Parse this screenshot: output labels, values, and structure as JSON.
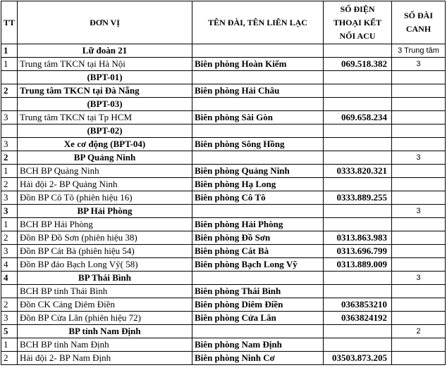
{
  "table": {
    "header": [
      "TT",
      "ĐƠN VỊ",
      "TÊN ĐÀI, TÊN LIÊN LẠC",
      "SỐ ĐIỆN THOẠI KẾT NỐI ACU",
      "SỐ ĐÀI CANH"
    ],
    "rows": [
      [
        "1",
        "Lữ đoàn 21",
        null,
        null,
        "3 Trung tâm"
      ],
      [
        "1",
        "Trung tâm TKCN tại Hà Nội",
        "Biên phòng Hoàn Kiếm",
        "069.518.382",
        "3"
      ],
      [
        null,
        "(BPT-01)",
        null,
        null,
        null
      ],
      [
        "2",
        "Trung tâm TKCN tại Đà Nẵng",
        "Biên phòng Hải Châu",
        null,
        null
      ],
      [
        null,
        "(BPT-03)",
        null,
        null,
        null
      ],
      [
        "3",
        "Trung tâm TKCN tại Tp HCM",
        "Biên phòng Sài Gòn",
        "069.658.234",
        null
      ],
      [
        null,
        "(BPT-02)",
        null,
        null,
        null
      ],
      [
        "3",
        "Xe cơ động (BPT-04)",
        "Biên phòng Sông Hồng",
        null,
        null
      ],
      [
        "2",
        "BP Quảng Ninh",
        null,
        null,
        "3"
      ],
      [
        "1",
        "BCH BP Quảng Ninh",
        "Biên phòng Quảng Ninh",
        "0333.820.321",
        null
      ],
      [
        "2",
        "Hải đội 2- BP Quảng Ninh",
        "Biên phòng Hạ Long",
        null,
        null
      ],
      [
        "3",
        "Đồn BP Cô Tô (phiên hiệu 16)",
        "Biên phòng Cô Tô",
        "0333.889.255",
        null
      ],
      [
        "3",
        "BP Hải Phòng",
        null,
        null,
        "3"
      ],
      [
        "1",
        "BCH BP Hải Phòng",
        "Biên phòng Hải Phòng",
        null,
        null
      ],
      [
        "2",
        "Đồn BP Đồ Sơn (phiên hiệu 38)",
        "Biên phòng Đồ Sơn",
        "0313.863.983",
        null
      ],
      [
        "3",
        "Đồn BP Cát Bà (phiên hiệu 54)",
        "Biên phòng Cát Bà",
        "0313.696.799",
        null
      ],
      [
        "4",
        "Đồn BP đảo Bạch Long Vỹ( 58)",
        "Biên phòng Bạch Long Vỹ",
        "0313.889.009",
        null
      ],
      [
        "4",
        "BP Thái Bình",
        null,
        null,
        "3"
      ],
      [
        null,
        "BCH BP tỉnh Thái Bình",
        "Biên phòng Thái Bình",
        null,
        null
      ],
      [
        "2",
        "Đồn CK Cảng Diêm Điền",
        "Biên phòng Diêm Điền",
        "0363853210",
        null
      ],
      [
        "3",
        "Đồn BP Cửa Lân (phiên hiệu 72)",
        "Biên phòng Cửa Lân",
        "0363824192",
        null
      ],
      [
        "5",
        "BP tỉnh Nam Định",
        null,
        null,
        "2"
      ],
      [
        "1",
        "BCH BP tỉnh Nam Định",
        "Biên phòng Nam Định",
        null,
        null
      ],
      [
        "2",
        "Hải đội 2- BP Nam Định",
        "Biên phòng Ninh Cơ",
        "03503.873.205",
        null
      ]
    ]
  }
}
